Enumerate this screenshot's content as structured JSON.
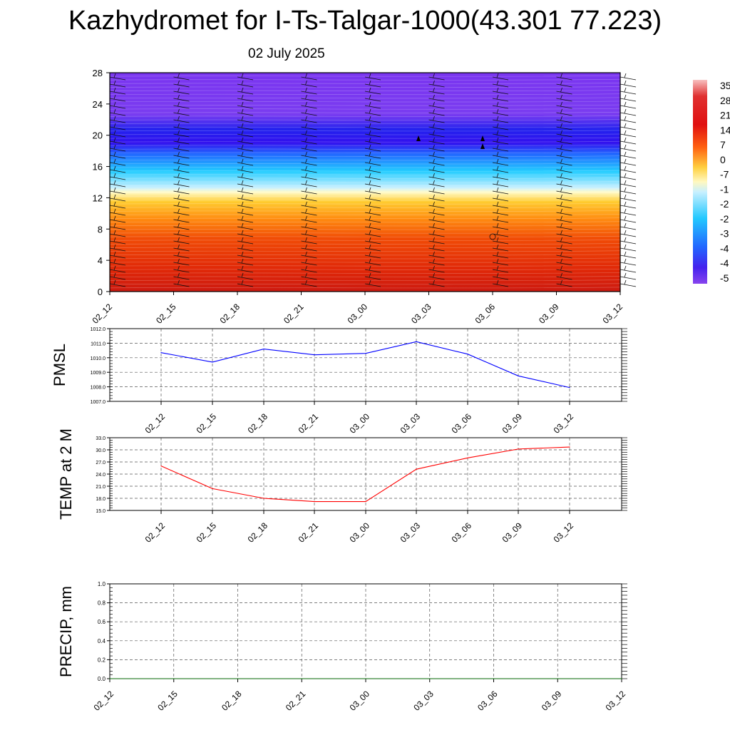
{
  "title": "Kazhydromet for I-Ts-Talgar-1000(43.301 77.223)",
  "date": "02 July 2025",
  "chart_data": [
    {
      "type": "heatmap",
      "name": "vertical-profile",
      "x_labels": [
        "02_12",
        "02_15",
        "02_18",
        "02_21",
        "03_00",
        "03_03",
        "03_06",
        "03_09",
        "03_12"
      ],
      "ylim": [
        0,
        28
      ],
      "y_ticks": [
        0,
        4,
        8,
        12,
        16,
        20,
        24,
        28
      ],
      "colorbar_labels": [
        "35",
        "28",
        "21",
        "14",
        "7",
        "0",
        "-7",
        "-1",
        "-2",
        "-2",
        "-3",
        "-4",
        "-4",
        "-5"
      ],
      "colors": {
        "warm": "#dd2200",
        "freezing": "#ffffcc",
        "cold": "#3322ee",
        "top": "#7733ee"
      }
    },
    {
      "type": "line",
      "name": "pmsl",
      "ylabel": "PMSL",
      "ylim": [
        1007.0,
        1012.0
      ],
      "y_ticks": [
        "1007.0",
        "1008.0",
        "1009.0",
        "1010.0",
        "1011.0",
        "1012.0"
      ],
      "x": [
        "02_12",
        "02_15",
        "02_18",
        "02_21",
        "03_00",
        "03_03",
        "03_06",
        "03_09",
        "03_12"
      ],
      "values": [
        1010.35,
        1009.7,
        1010.6,
        1010.2,
        1010.3,
        1011.1,
        1010.25,
        1008.75,
        1007.95
      ],
      "color": "#0000ff"
    },
    {
      "type": "line",
      "name": "temp2m",
      "ylabel": "TEMP at 2 M",
      "ylim": [
        15.0,
        33.0
      ],
      "y_ticks": [
        "15.0",
        "18.0",
        "21.0",
        "24.0",
        "27.0",
        "30.0",
        "33.0"
      ],
      "x": [
        "02_12",
        "02_15",
        "02_18",
        "02_21",
        "03_00",
        "03_03",
        "03_06",
        "03_09",
        "03_12"
      ],
      "values": [
        26.0,
        20.4,
        18.0,
        17.2,
        17.2,
        25.2,
        28.0,
        30.2,
        30.7
      ],
      "color": "#ff0000"
    },
    {
      "type": "line",
      "name": "precip",
      "ylabel": "PRECIP, mm",
      "ylim": [
        0.0,
        1.0
      ],
      "y_ticks": [
        "0.0",
        "0.2",
        "0.4",
        "0.6",
        "0.8",
        "1.0"
      ],
      "x_labels": [
        "02_12",
        "02_15",
        "02_18",
        "02_21",
        "03_00",
        "03_03",
        "03_06",
        "03_09",
        "03_12"
      ],
      "values": [
        0,
        0,
        0,
        0,
        0,
        0,
        0,
        0,
        0
      ],
      "color": "#006600"
    }
  ]
}
